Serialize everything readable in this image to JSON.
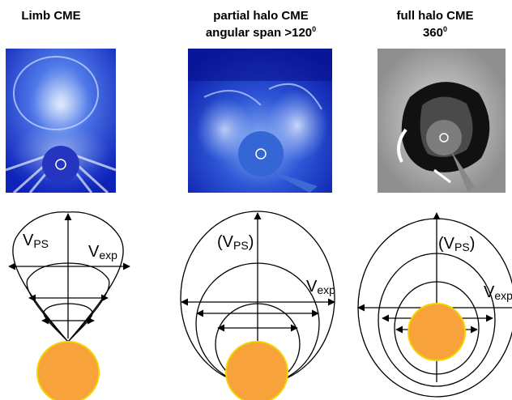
{
  "panels": [
    {
      "id": "limb",
      "title_line1": "Limb CME",
      "title_line2": "",
      "title_sup": "",
      "label_vps": "V",
      "label_vps_sub": "PS",
      "label_vexp": "V",
      "label_vexp_sub": "exp"
    },
    {
      "id": "partial",
      "title_line1": "partial halo CME",
      "title_line2": "angular span >120",
      "title_sup": "0",
      "label_vps_open": "(V",
      "label_vps_sub": "PS",
      "label_vps_close": ")",
      "label_vexp": "V",
      "label_vexp_sub": "exp"
    },
    {
      "id": "full",
      "title_line1": "full halo CME",
      "title_line2": "360",
      "title_sup": "0",
      "label_vps_open": "(V",
      "label_vps_sub": "PS",
      "label_vps_close": ")",
      "label_vexp": "V",
      "label_vexp_sub": "exp"
    }
  ],
  "colors": {
    "sun_fill": "#f7a23a",
    "sun_edge": "#f3d400",
    "coronagraph_blue": "#1f3fd0",
    "occulter_blue": "#2f63cf",
    "difference_gray": "#8a8a8a"
  }
}
